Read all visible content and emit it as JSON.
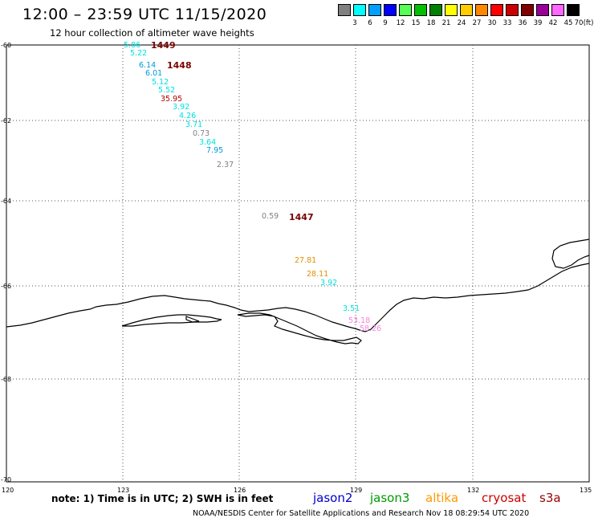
{
  "header": {
    "title": "12:00 – 23:59 UTC 11/15/2020",
    "subtitle": "12 hour collection of altimeter wave heights"
  },
  "color_scale": {
    "unit_label": "(ft)",
    "bins": [
      {
        "label": "3",
        "color": "#808080"
      },
      {
        "label": "6",
        "color": "#00ffff"
      },
      {
        "label": "9",
        "color": "#00a0ff"
      },
      {
        "label": "12",
        "color": "#0000ff"
      },
      {
        "label": "15",
        "color": "#55ff55"
      },
      {
        "label": "18",
        "color": "#00c000"
      },
      {
        "label": "21",
        "color": "#008000"
      },
      {
        "label": "24",
        "color": "#ffff00"
      },
      {
        "label": "27",
        "color": "#ffcc00"
      },
      {
        "label": "30",
        "color": "#ff8800"
      },
      {
        "label": "33",
        "color": "#ff0000"
      },
      {
        "label": "36",
        "color": "#cc0000"
      },
      {
        "label": "39",
        "color": "#800000"
      },
      {
        "label": "42",
        "color": "#990099"
      },
      {
        "label": "45",
        "color": "#ff66ff"
      },
      {
        "label": "70",
        "color": "#000000"
      }
    ]
  },
  "axes": {
    "lat_labels": [
      "-60",
      "-62",
      "-64",
      "-66",
      "-68",
      "-70"
    ],
    "lon_labels": [
      "120",
      "123",
      "126",
      "129",
      "132",
      "135"
    ]
  },
  "pass_times": [
    "1449",
    "1448",
    "1447"
  ],
  "observations": [
    {
      "value": "5.86",
      "color": "#00e0e0"
    },
    {
      "value": "5.22",
      "color": "#00e0e0"
    },
    {
      "value": "6.14",
      "color": "#0099dd"
    },
    {
      "value": "6.01",
      "color": "#0099dd"
    },
    {
      "value": "5.12",
      "color": "#00e0e0"
    },
    {
      "value": "5.52",
      "color": "#00e0e0"
    },
    {
      "value": "35.95",
      "color": "#b00000"
    },
    {
      "value": "3.92",
      "color": "#00e0e0"
    },
    {
      "value": "4.26",
      "color": "#00e0e0"
    },
    {
      "value": "3.71",
      "color": "#00e0e0"
    },
    {
      "value": "0.73",
      "color": "#808080"
    },
    {
      "value": "3.64",
      "color": "#00e0e0"
    },
    {
      "value": "7.95",
      "color": "#0099dd"
    },
    {
      "value": "2.37",
      "color": "#808080"
    },
    {
      "value": "0.59",
      "color": "#808080"
    },
    {
      "value": "27.81",
      "color": "#e09000"
    },
    {
      "value": "28.11",
      "color": "#e09000"
    },
    {
      "value": "3.92",
      "color": "#00e0e0"
    },
    {
      "value": "3.51",
      "color": "#00e0e0"
    },
    {
      "value": "53.18",
      "color": "#ff80e0"
    },
    {
      "value": "58.26",
      "color": "#ff80e0"
    }
  ],
  "footer": {
    "note": "note: 1) Time is in UTC; 2) SWH is in feet",
    "satellites": [
      {
        "name": "jason2",
        "color": "#0000cc"
      },
      {
        "name": "jason3",
        "color": "#009900"
      },
      {
        "name": "altika",
        "color": "#ff9900"
      },
      {
        "name": "cryosat",
        "color": "#cc0000"
      },
      {
        "name": "s3a",
        "color": "#990000"
      }
    ],
    "credit": "NOAA/NESDIS Center for Satellite Applications and Research    Nov 18 08:29:54 UTC 2020"
  }
}
